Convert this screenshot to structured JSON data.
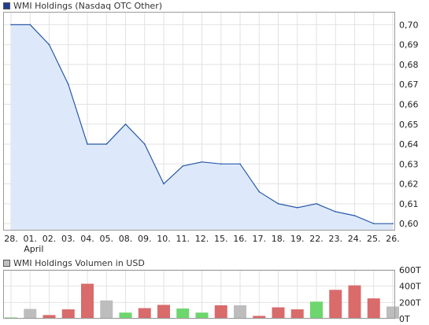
{
  "chart_data": [
    {
      "type": "area",
      "title": "WMI Holdings (Nasdaq OTC Other)",
      "legend_color": "#1e3f8f",
      "line_color": "#2a5aa8",
      "fill_color": "#dde9fa",
      "x": [
        "28.",
        "01.",
        "02.",
        "03.",
        "04.",
        "05.",
        "08.",
        "09.",
        "10.",
        "11.",
        "12.",
        "15.",
        "16.",
        "17.",
        "18.",
        "19.",
        "22.",
        "23.",
        "24.",
        "25.",
        "26."
      ],
      "month_label": "April",
      "values": [
        0.7,
        0.7,
        0.69,
        0.67,
        0.64,
        0.64,
        0.65,
        0.64,
        0.62,
        0.629,
        0.631,
        0.63,
        0.63,
        0.616,
        0.61,
        0.608,
        0.61,
        0.606,
        0.604,
        0.6,
        0.6
      ],
      "y_ticks": [
        "0,70",
        "0,69",
        "0,68",
        "0,67",
        "0,66",
        "0,65",
        "0,64",
        "0,63",
        "0,62",
        "0,61",
        "0,60"
      ],
      "ylim": [
        0.5965,
        0.7065
      ],
      "grid": true,
      "legend_position": "top-left"
    },
    {
      "type": "bar",
      "title": "WMI Holdings Volumen in USD",
      "legend_color": "#c0c0c0",
      "categories": [
        "28.",
        "01.",
        "02.",
        "03.",
        "04.",
        "05.",
        "08.",
        "09.",
        "10.",
        "11.",
        "12.",
        "15.",
        "16.",
        "17.",
        "18.",
        "19.",
        "22.",
        "23.",
        "24.",
        "25.",
        "26."
      ],
      "values": [
        15,
        120,
        45,
        115,
        430,
        225,
        75,
        130,
        170,
        125,
        75,
        165,
        165,
        35,
        140,
        115,
        210,
        355,
        410,
        250,
        150
      ],
      "bar_colors": [
        "#6dd66d",
        "#bdbdbd",
        "#d96b6b",
        "#d96b6b",
        "#d96b6b",
        "#bdbdbd",
        "#6dd66d",
        "#d96b6b",
        "#d96b6b",
        "#6dd66d",
        "#6dd66d",
        "#d96b6b",
        "#bdbdbd",
        "#d96b6b",
        "#d96b6b",
        "#d96b6b",
        "#6dd66d",
        "#d96b6b",
        "#d96b6b",
        "#d96b6b",
        "#bdbdbd"
      ],
      "y_ticks": [
        {
          "label": "600T",
          "value": 600
        },
        {
          "label": "400T",
          "value": 400
        },
        {
          "label": "200T",
          "value": 200
        },
        {
          "label": "0T",
          "value": 0
        }
      ],
      "ylim": [
        0,
        600
      ],
      "unit": "T",
      "grid": true,
      "legend_position": "top-left"
    }
  ]
}
